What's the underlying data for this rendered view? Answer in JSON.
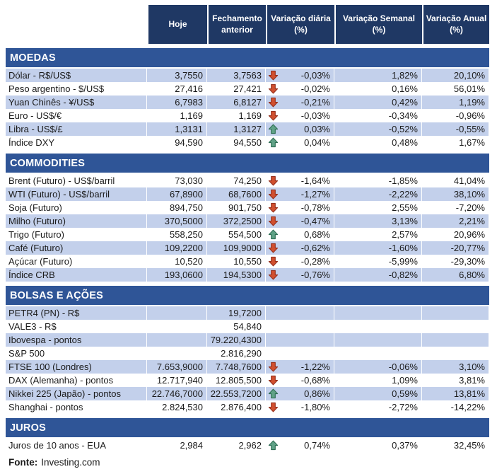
{
  "colors": {
    "header_bg": "#1F3864",
    "section_bg": "#2F5597",
    "row_stripe": "#C3D0EB",
    "row_white": "#FFFFFF",
    "body_text": "#1B1B1B",
    "header_text": "#FFFFFF",
    "arrow_down": "#D1502F",
    "arrow_down_outline": "#96301C",
    "arrow_up": "#60A287",
    "arrow_up_outline": "#2F6E54"
  },
  "footer": {
    "label": "Fonte:",
    "source": "Investing.com"
  },
  "chart_data": {
    "type": "table",
    "title": "",
    "columns": [
      "",
      "Hoje",
      "Fechamento anterior",
      "Variação diária (%)",
      "Variação Semanal (%)",
      "Variação Anual (%)"
    ],
    "sections": [
      {
        "name": "MOEDAS",
        "first_row_shaded": true,
        "rows": [
          {
            "label": "Dólar - R$/US$",
            "hoje": "3,7550",
            "fechamento": "3,7563",
            "direction": "down",
            "diaria": "-0,03%",
            "semanal": "1,82%",
            "anual": "20,10%"
          },
          {
            "label": "Peso argentino - $/US$",
            "hoje": "27,416",
            "fechamento": "27,421",
            "direction": "down",
            "diaria": "-0,02%",
            "semanal": "0,16%",
            "anual": "56,01%"
          },
          {
            "label": "Yuan Chinês - ¥/US$",
            "hoje": "6,7983",
            "fechamento": "6,8127",
            "direction": "down",
            "diaria": "-0,21%",
            "semanal": "0,42%",
            "anual": "1,19%"
          },
          {
            "label": "Euro - US$/€",
            "hoje": "1,169",
            "fechamento": "1,169",
            "direction": "down",
            "diaria": "-0,03%",
            "semanal": "-0,34%",
            "anual": "-0,96%"
          },
          {
            "label": "Libra - US$/£",
            "hoje": "1,3131",
            "fechamento": "1,3127",
            "direction": "up",
            "diaria": "0,03%",
            "semanal": "-0,52%",
            "anual": "-0,55%"
          },
          {
            "label": "Índice DXY",
            "hoje": "94,590",
            "fechamento": "94,550",
            "direction": "up",
            "diaria": "0,04%",
            "semanal": "0,48%",
            "anual": "1,67%"
          }
        ]
      },
      {
        "name": "COMMODITIES",
        "first_row_shaded": false,
        "rows": [
          {
            "label": "Brent (Futuro) - US$/barril",
            "hoje": "73,030",
            "fechamento": "74,250",
            "direction": "down",
            "diaria": "-1,64%",
            "semanal": "-1,85%",
            "anual": "41,04%"
          },
          {
            "label": "WTI (Futuro) - US$/barril",
            "hoje": "67,8900",
            "fechamento": "68,7600",
            "direction": "down",
            "diaria": "-1,27%",
            "semanal": "-2,22%",
            "anual": "38,10%"
          },
          {
            "label": "Soja (Futuro)",
            "hoje": "894,750",
            "fechamento": "901,750",
            "direction": "down",
            "diaria": "-0,78%",
            "semanal": "2,55%",
            "anual": "-7,20%"
          },
          {
            "label": "Milho (Futuro)",
            "hoje": "370,5000",
            "fechamento": "372,2500",
            "direction": "down",
            "diaria": "-0,47%",
            "semanal": "3,13%",
            "anual": "2,21%"
          },
          {
            "label": "Trigo (Futuro)",
            "hoje": "558,250",
            "fechamento": "554,500",
            "direction": "up",
            "diaria": "0,68%",
            "semanal": "2,57%",
            "anual": "20,96%"
          },
          {
            "label": "Café (Futuro)",
            "hoje": "109,2200",
            "fechamento": "109,9000",
            "direction": "down",
            "diaria": "-0,62%",
            "semanal": "-1,60%",
            "anual": "-20,77%"
          },
          {
            "label": "Açúcar (Futuro)",
            "hoje": "10,520",
            "fechamento": "10,550",
            "direction": "down",
            "diaria": "-0,28%",
            "semanal": "-5,99%",
            "anual": "-29,30%"
          },
          {
            "label": "Índice CRB",
            "hoje": "193,0600",
            "fechamento": "194,5300",
            "direction": "down",
            "diaria": "-0,76%",
            "semanal": "-0,82%",
            "anual": "6,80%"
          }
        ]
      },
      {
        "name": "BOLSAS E AÇÕES",
        "first_row_shaded": true,
        "rows": [
          {
            "label": "PETR4 (PN) - R$",
            "hoje": "",
            "fechamento": "19,7200",
            "direction": "",
            "diaria": "",
            "semanal": "",
            "anual": ""
          },
          {
            "label": "VALE3 - R$",
            "hoje": "",
            "fechamento": "54,840",
            "direction": "",
            "diaria": "",
            "semanal": "",
            "anual": ""
          },
          {
            "label": "Ibovespa - pontos",
            "hoje": "",
            "fechamento": "79.220,4300",
            "direction": "",
            "diaria": "",
            "semanal": "",
            "anual": ""
          },
          {
            "label": "S&P 500",
            "hoje": "",
            "fechamento": "2.816,290",
            "direction": "",
            "diaria": "",
            "semanal": "",
            "anual": ""
          },
          {
            "label": "FTSE 100 (Londres)",
            "hoje": "7.653,9000",
            "fechamento": "7.748,7600",
            "direction": "down",
            "diaria": "-1,22%",
            "semanal": "-0,06%",
            "anual": "3,10%"
          },
          {
            "label": "DAX (Alemanha) - pontos",
            "hoje": "12.717,940",
            "fechamento": "12.805,500",
            "direction": "down",
            "diaria": "-0,68%",
            "semanal": "1,09%",
            "anual": "3,81%"
          },
          {
            "label": "Nikkei 225 (Japão) - pontos",
            "hoje": "22.746,7000",
            "fechamento": "22.553,7200",
            "direction": "up",
            "diaria": "0,86%",
            "semanal": "0,59%",
            "anual": "13,81%"
          },
          {
            "label": "Shanghai - pontos",
            "hoje": "2.824,530",
            "fechamento": "2.876,400",
            "direction": "down",
            "diaria": "-1,80%",
            "semanal": "-2,72%",
            "anual": "-14,22%"
          }
        ]
      },
      {
        "name": "JUROS",
        "first_row_shaded": false,
        "rows": [
          {
            "label": "Juros de 10 anos - EUA",
            "hoje": "2,984",
            "fechamento": "2,962",
            "direction": "up",
            "diaria": "0,74%",
            "semanal": "0,37%",
            "anual": "32,45%"
          }
        ]
      }
    ]
  }
}
